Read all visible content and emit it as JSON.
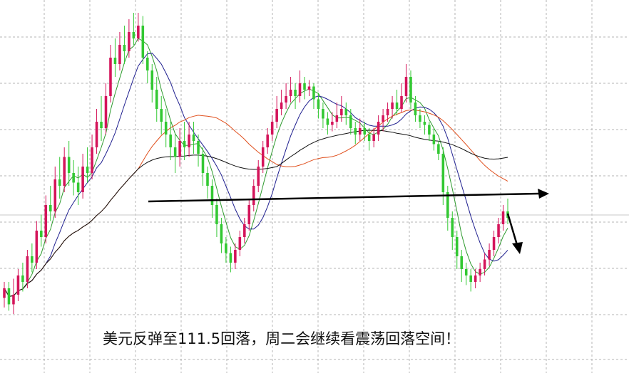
{
  "caption": "美元反弹至111.5回落，周二会继续看震荡回落空间！",
  "colors": {
    "up": "#d4145a",
    "down": "#32c832",
    "ma_fast": "#2e9b2e",
    "ma_mid": "#1f1f8f",
    "ma_slow": "#e0501e",
    "ma_long": "#111111",
    "grid": "#b4b4b4",
    "annotation": "#000000"
  },
  "chart_data": {
    "type": "candlestick",
    "title": "",
    "xlabel": "",
    "ylabel": "",
    "ylim": [
      0,
      100
    ],
    "grid": true,
    "candles": [
      [
        11,
        14,
        16,
        8
      ],
      [
        14,
        9,
        16,
        7
      ],
      [
        9,
        12,
        17,
        6
      ],
      [
        12,
        18,
        20,
        10
      ],
      [
        18,
        16,
        22,
        13
      ],
      [
        16,
        24,
        26,
        14
      ],
      [
        24,
        22,
        28,
        19
      ],
      [
        22,
        32,
        35,
        20
      ],
      [
        32,
        30,
        37,
        27
      ],
      [
        30,
        40,
        43,
        28
      ],
      [
        40,
        38,
        46,
        35
      ],
      [
        38,
        48,
        52,
        36
      ],
      [
        48,
        46,
        55,
        42
      ],
      [
        46,
        55,
        58,
        44
      ],
      [
        55,
        50,
        60,
        46
      ],
      [
        50,
        47,
        54,
        43
      ],
      [
        47,
        44,
        52,
        40
      ],
      [
        44,
        52,
        56,
        42
      ],
      [
        52,
        50,
        58,
        47
      ],
      [
        50,
        58,
        62,
        48
      ],
      [
        58,
        66,
        70,
        56
      ],
      [
        66,
        64,
        74,
        60
      ],
      [
        64,
        74,
        78,
        62
      ],
      [
        74,
        86,
        90,
        72
      ],
      [
        86,
        84,
        92,
        80
      ],
      [
        84,
        90,
        94,
        82
      ],
      [
        90,
        88,
        96,
        84
      ],
      [
        88,
        94,
        98,
        86
      ],
      [
        94,
        92,
        100,
        90
      ],
      [
        92,
        96,
        100,
        91
      ],
      [
        96,
        86,
        99,
        84
      ],
      [
        86,
        82,
        88,
        78
      ],
      [
        82,
        76,
        84,
        72
      ],
      [
        76,
        70,
        80,
        66
      ],
      [
        70,
        66,
        74,
        62
      ],
      [
        66,
        62,
        70,
        58
      ],
      [
        62,
        58,
        66,
        54
      ],
      [
        58,
        55,
        62,
        50
      ],
      [
        55,
        60,
        64,
        52
      ],
      [
        60,
        58,
        66,
        54
      ],
      [
        58,
        62,
        66,
        55
      ],
      [
        62,
        60,
        66,
        56
      ],
      [
        60,
        56,
        62,
        52
      ],
      [
        56,
        50,
        58,
        46
      ],
      [
        50,
        46,
        52,
        42
      ],
      [
        46,
        40,
        48,
        36
      ],
      [
        40,
        34,
        42,
        30
      ],
      [
        34,
        28,
        36,
        25
      ],
      [
        28,
        25,
        30,
        22
      ],
      [
        25,
        22,
        27,
        19
      ],
      [
        22,
        26,
        28,
        20
      ],
      [
        26,
        30,
        32,
        24
      ],
      [
        30,
        34,
        36,
        28
      ],
      [
        34,
        40,
        42,
        32
      ],
      [
        40,
        46,
        48,
        38
      ],
      [
        46,
        52,
        54,
        44
      ],
      [
        52,
        58,
        60,
        50
      ],
      [
        58,
        62,
        64,
        56
      ],
      [
        62,
        66,
        68,
        60
      ],
      [
        66,
        70,
        74,
        64
      ],
      [
        70,
        72,
        76,
        68
      ],
      [
        72,
        74,
        78,
        70
      ],
      [
        74,
        76,
        80,
        72
      ],
      [
        76,
        74,
        78,
        70
      ],
      [
        74,
        78,
        82,
        72
      ],
      [
        78,
        76,
        80,
        73
      ],
      [
        76,
        77,
        79,
        74
      ],
      [
        77,
        73,
        78,
        70
      ],
      [
        73,
        70,
        75,
        67
      ],
      [
        70,
        67,
        72,
        64
      ],
      [
        67,
        65,
        69,
        62
      ],
      [
        65,
        66,
        69,
        63
      ],
      [
        66,
        68,
        72,
        64
      ],
      [
        68,
        70,
        74,
        66
      ],
      [
        70,
        68,
        72,
        65
      ],
      [
        68,
        64,
        70,
        62
      ],
      [
        64,
        62,
        66,
        59
      ],
      [
        62,
        64,
        67,
        60
      ],
      [
        64,
        62,
        66,
        60
      ],
      [
        62,
        60,
        64,
        57
      ],
      [
        60,
        62,
        64,
        58
      ],
      [
        62,
        66,
        68,
        60
      ],
      [
        66,
        68,
        70,
        63
      ],
      [
        68,
        70,
        72,
        66
      ],
      [
        70,
        72,
        74,
        67
      ],
      [
        72,
        70,
        76,
        68
      ],
      [
        70,
        74,
        78,
        69
      ],
      [
        74,
        80,
        84,
        72
      ],
      [
        80,
        72,
        82,
        70
      ],
      [
        72,
        68,
        74,
        66
      ],
      [
        68,
        66,
        70,
        64
      ],
      [
        66,
        65,
        68,
        62
      ],
      [
        65,
        62,
        66,
        60
      ],
      [
        62,
        59,
        64,
        57
      ],
      [
        59,
        56,
        60,
        54
      ],
      [
        56,
        44,
        58,
        40
      ],
      [
        44,
        36,
        46,
        32
      ],
      [
        36,
        30,
        38,
        26
      ],
      [
        30,
        24,
        32,
        20
      ],
      [
        24,
        20,
        26,
        16
      ],
      [
        20,
        18,
        22,
        15
      ],
      [
        18,
        16,
        20,
        13
      ],
      [
        16,
        18,
        20,
        14
      ],
      [
        18,
        20,
        22,
        16
      ],
      [
        20,
        23,
        25,
        18
      ],
      [
        23,
        26,
        28,
        21
      ],
      [
        26,
        30,
        32,
        24
      ],
      [
        30,
        34,
        36,
        28
      ],
      [
        34,
        38,
        40,
        32
      ],
      [
        38,
        36,
        42,
        34
      ]
    ],
    "moving_averages": [
      {
        "period": 5,
        "color_key": "ma_fast"
      },
      {
        "period": 10,
        "color_key": "ma_mid"
      },
      {
        "period": 30,
        "color_key": "ma_slow"
      },
      {
        "period": 60,
        "color_key": "ma_long"
      }
    ]
  }
}
